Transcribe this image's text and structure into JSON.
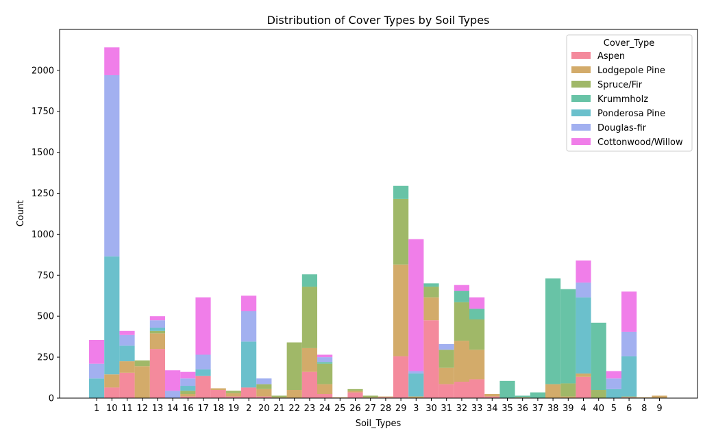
{
  "chart_data": {
    "type": "bar",
    "stacked": true,
    "title": "Distribution of Cover Types by Soil Types",
    "xlabel": "Soil_Types",
    "ylabel": "Count",
    "ylim": [
      0,
      2200
    ],
    "yticks": [
      0,
      250,
      500,
      750,
      1000,
      1250,
      1500,
      1750,
      2000
    ],
    "grid": false,
    "legend_title": "Cover_Type",
    "legend_position": "top-right",
    "categories": [
      "1",
      "10",
      "11",
      "12",
      "13",
      "14",
      "16",
      "17",
      "18",
      "19",
      "2",
      "20",
      "21",
      "22",
      "23",
      "24",
      "25",
      "26",
      "27",
      "28",
      "29",
      "3",
      "30",
      "31",
      "32",
      "33",
      "34",
      "35",
      "36",
      "37",
      "38",
      "39",
      "4",
      "40",
      "5",
      "6",
      "8",
      "9"
    ],
    "series": [
      {
        "name": "Aspen",
        "color": "#f48a9c",
        "values": [
          0,
          65,
          155,
          0,
          300,
          0,
          10,
          135,
          50,
          10,
          65,
          10,
          0,
          0,
          160,
          25,
          0,
          35,
          0,
          5,
          255,
          0,
          475,
          85,
          100,
          115,
          10,
          0,
          0,
          0,
          0,
          0,
          130,
          0,
          0,
          5,
          0,
          0
        ]
      },
      {
        "name": "Lodgepole Pine",
        "color": "#d3ab6a",
        "values": [
          0,
          80,
          70,
          195,
          95,
          0,
          15,
          0,
          10,
          20,
          0,
          45,
          5,
          50,
          145,
          60,
          5,
          10,
          5,
          5,
          560,
          10,
          140,
          100,
          250,
          180,
          15,
          0,
          5,
          0,
          85,
          10,
          20,
          0,
          0,
          0,
          5,
          15
        ]
      },
      {
        "name": "Spruce/Fir",
        "color": "#a0b868",
        "values": [
          0,
          0,
          0,
          35,
          15,
          0,
          20,
          0,
          0,
          15,
          0,
          30,
          10,
          290,
          375,
          125,
          0,
          10,
          10,
          0,
          400,
          0,
          65,
          110,
          235,
          185,
          0,
          0,
          0,
          0,
          0,
          80,
          0,
          50,
          0,
          5,
          0,
          0
        ]
      },
      {
        "name": "Krummholz",
        "color": "#68c3a6",
        "values": [
          0,
          0,
          0,
          0,
          0,
          0,
          0,
          0,
          0,
          0,
          0,
          0,
          0,
          0,
          75,
          10,
          0,
          0,
          0,
          0,
          80,
          0,
          20,
          0,
          70,
          65,
          0,
          105,
          10,
          35,
          645,
          575,
          0,
          410,
          0,
          0,
          0,
          0
        ]
      },
      {
        "name": "Ponderosa Pine",
        "color": "#6bc0cc",
        "values": [
          120,
          720,
          95,
          0,
          20,
          0,
          30,
          40,
          0,
          0,
          280,
          0,
          0,
          0,
          0,
          0,
          0,
          0,
          0,
          0,
          0,
          140,
          0,
          0,
          0,
          0,
          0,
          0,
          0,
          0,
          0,
          0,
          465,
          0,
          55,
          245,
          0,
          0
        ]
      },
      {
        "name": "Douglas-fir",
        "color": "#a2b0f0",
        "values": [
          90,
          1105,
          65,
          0,
          45,
          45,
          45,
          90,
          0,
          0,
          185,
          35,
          0,
          0,
          0,
          30,
          0,
          0,
          0,
          0,
          0,
          15,
          0,
          35,
          0,
          0,
          0,
          0,
          0,
          0,
          0,
          0,
          90,
          0,
          65,
          150,
          0,
          0
        ]
      },
      {
        "name": "Cottonwood/Willow",
        "color": "#f07ee9",
        "values": [
          145,
          170,
          25,
          0,
          25,
          125,
          40,
          350,
          0,
          0,
          95,
          0,
          0,
          0,
          0,
          15,
          0,
          0,
          0,
          0,
          0,
          805,
          0,
          0,
          35,
          70,
          0,
          0,
          0,
          0,
          0,
          0,
          135,
          0,
          45,
          245,
          0,
          0
        ]
      }
    ]
  }
}
